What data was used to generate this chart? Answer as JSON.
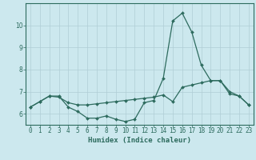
{
  "xlabel": "Humidex (Indice chaleur)",
  "ylabel": "",
  "background_color": "#cce8ee",
  "line_color": "#2d6b5e",
  "grid_color": "#b0cdd5",
  "x_values": [
    0,
    1,
    2,
    3,
    4,
    5,
    6,
    7,
    8,
    9,
    10,
    11,
    12,
    13,
    14,
    15,
    16,
    17,
    18,
    19,
    20,
    21,
    22,
    23
  ],
  "y_series1": [
    6.3,
    6.55,
    6.8,
    6.8,
    6.3,
    6.1,
    5.8,
    5.8,
    5.9,
    5.75,
    5.65,
    5.75,
    6.5,
    6.6,
    7.6,
    10.2,
    10.55,
    9.7,
    8.2,
    7.5,
    7.5,
    6.9,
    6.8,
    6.4
  ],
  "y_series2": [
    6.3,
    6.55,
    6.8,
    6.75,
    6.5,
    6.4,
    6.4,
    6.45,
    6.5,
    6.55,
    6.6,
    6.65,
    6.7,
    6.75,
    6.85,
    6.55,
    7.2,
    7.3,
    7.4,
    7.5,
    7.5,
    7.0,
    6.8,
    6.4
  ],
  "ylim": [
    5.5,
    11.0
  ],
  "yticks": [
    6,
    7,
    8,
    9,
    10
  ],
  "marker": "D",
  "marker_size": 2.0,
  "tick_fontsize": 5.5,
  "xlabel_fontsize": 6.5
}
